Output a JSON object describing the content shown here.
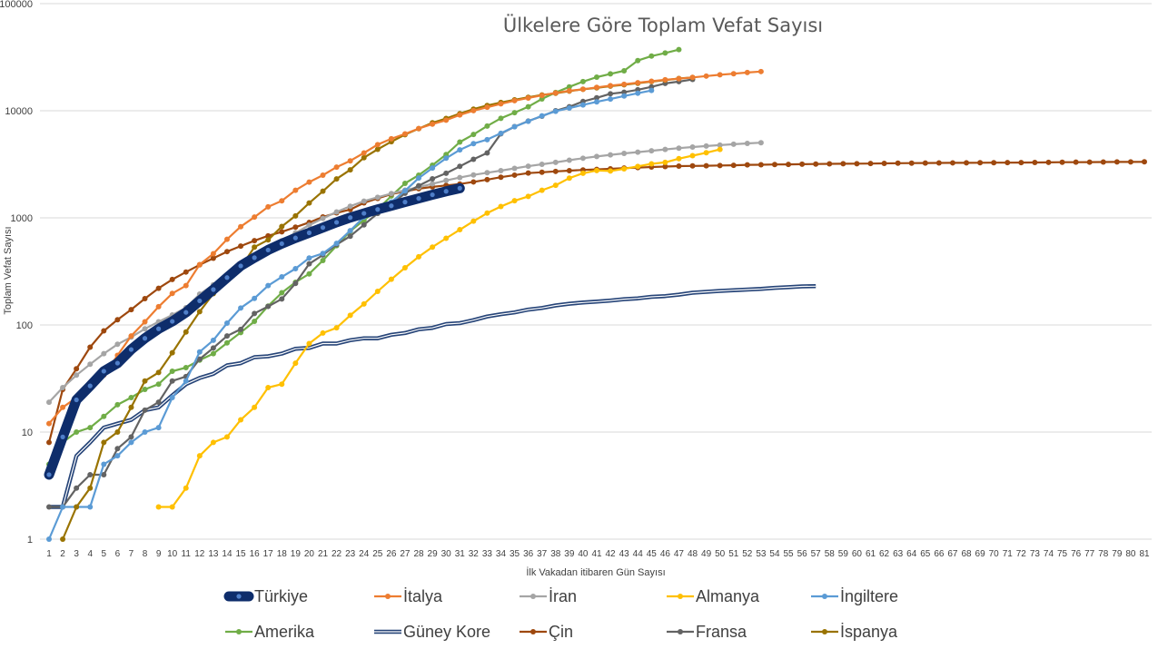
{
  "chart_data": {
    "type": "line",
    "title": "Ülkelere Göre Toplam Vefat Sayısı",
    "xlabel": "İlk Vakadan itibaren Gün Sayısı",
    "ylabel": "Toplam Vefat Sayısı",
    "yscale": "log",
    "ylim": [
      1,
      100000
    ],
    "yticks": [
      "1",
      "10",
      "100",
      "1000",
      "10000",
      "100000"
    ],
    "xlim": [
      1,
      81
    ],
    "x_categories": [
      "1",
      "2",
      "3",
      "4",
      "5",
      "6",
      "7",
      "8",
      "9",
      "10",
      "11",
      "12",
      "13",
      "14",
      "15",
      "16",
      "17",
      "18",
      "19",
      "20",
      "21",
      "22",
      "23",
      "24",
      "25",
      "26",
      "27",
      "28",
      "29",
      "30",
      "31",
      "32",
      "33",
      "34",
      "35",
      "36",
      "37",
      "38",
      "39",
      "40",
      "41",
      "42",
      "43",
      "44",
      "45",
      "46",
      "47",
      "48",
      "49",
      "50",
      "51",
      "52",
      "53",
      "54",
      "55",
      "56",
      "57",
      "58",
      "59",
      "60",
      "61",
      "62",
      "63",
      "64",
      "65",
      "66",
      "67",
      "68",
      "69",
      "70",
      "71",
      "72",
      "73",
      "74",
      "75",
      "76",
      "77",
      "78",
      "79",
      "80",
      "81"
    ],
    "grid": true,
    "legend_position": "bottom",
    "series": [
      {
        "name": "Türkiye",
        "color": "#0e2d6b",
        "style": "thick",
        "start_day": 1,
        "values": [
          4,
          9,
          20,
          27,
          37,
          44,
          59,
          75,
          92,
          108,
          131,
          168,
          214,
          277,
          356,
          425,
          501,
          574,
          649,
          725,
          812,
          908,
          1006,
          1101,
          1198,
          1296,
          1403,
          1518,
          1643,
          1769,
          1890
        ]
      },
      {
        "name": "İtalya",
        "color": "#ed7d31",
        "style": "normal",
        "start_day": 1,
        "values": [
          12,
          17,
          21,
          29,
          34,
          52,
          79,
          107,
          148,
          197,
          233,
          366,
          463,
          631,
          827,
          1016,
          1266,
          1441,
          1809,
          2158,
          2503,
          2978,
          3405,
          4032,
          4825,
          5476,
          6077,
          6820,
          7503,
          8165,
          9134,
          10023,
          10779,
          11591,
          12428,
          13155,
          13915,
          14681,
          15362,
          15887,
          16523,
          17127,
          17669,
          18279,
          18849,
          19468,
          19899,
          20465,
          21067,
          21645,
          22170,
          22745,
          23227
        ]
      },
      {
        "name": "İran",
        "color": "#a5a5a5",
        "style": "normal",
        "start_day": 1,
        "values": [
          19,
          26,
          34,
          43,
          54,
          66,
          77,
          92,
          107,
          124,
          145,
          194,
          237,
          291,
          354,
          429,
          514,
          611,
          724,
          853,
          988,
          1135,
          1284,
          1433,
          1556,
          1685,
          1812,
          1934,
          2077,
          2234,
          2378,
          2517,
          2640,
          2757,
          2898,
          3036,
          3160,
          3294,
          3452,
          3603,
          3739,
          3872,
          3993,
          4110,
          4232,
          4357,
          4474,
          4585,
          4683,
          4777,
          4869,
          4958,
          5031
        ]
      },
      {
        "name": "Almanya",
        "color": "#ffc000",
        "style": "normal",
        "start_day": 9,
        "values": [
          2,
          2,
          3,
          6,
          8,
          9,
          13,
          17,
          26,
          28,
          44,
          67,
          84,
          94,
          123,
          157,
          206,
          267,
          342,
          433,
          533,
          645,
          775,
          931,
          1107,
          1275,
          1444,
          1584,
          1810,
          2016,
          2349,
          2607,
          2767,
          2736,
          2871,
          3022,
          3194,
          3294,
          3569,
          3804,
          4052,
          4352
        ]
      },
      {
        "name": "İngiltere",
        "color": "#5b9bd5",
        "style": "normal",
        "start_day": 1,
        "values": [
          1,
          2,
          2,
          2,
          5,
          6,
          8,
          10,
          11,
          21,
          30,
          56,
          72,
          104,
          144,
          177,
          233,
          281,
          335,
          422,
          465,
          578,
          759,
          1019,
          1228,
          1408,
          1789,
          2352,
          2921,
          3605,
          4313,
          4934,
          5373,
          6159,
          7097,
          7978,
          8958,
          9875,
          10612,
          11329,
          12107,
          12868,
          13729,
          14576,
          15464
        ]
      },
      {
        "name": "Amerika",
        "color": "#70ad47",
        "style": "normal",
        "start_day": 1,
        "values": [
          5,
          8,
          10,
          11,
          14,
          18,
          21,
          25,
          28,
          37,
          40,
          47,
          54,
          68,
          85,
          108,
          150,
          200,
          250,
          300,
          400,
          550,
          750,
          950,
          1200,
          1600,
          2100,
          2500,
          3100,
          3900,
          5100,
          6000,
          7200,
          8500,
          9600,
          10900,
          12900,
          14800,
          16700,
          18700,
          20600,
          22100,
          23600,
          29400,
          32400,
          34600,
          37200
        ]
      },
      {
        "name": "Güney Kore",
        "color": "#264478",
        "style": "double",
        "start_day": 1,
        "values": [
          2,
          2,
          6,
          8,
          11,
          12,
          13,
          16,
          17,
          22,
          28,
          32,
          35,
          42,
          44,
          50,
          51,
          54,
          60,
          61,
          67,
          67,
          72,
          75,
          75,
          81,
          84,
          91,
          94,
          102,
          104,
          111,
          120,
          126,
          131,
          139,
          144,
          152,
          158,
          162,
          165,
          169,
          174,
          177,
          183,
          186,
          192,
          200,
          204,
          208,
          211,
          214,
          217,
          222,
          225,
          229,
          230
        ]
      },
      {
        "name": "Çin",
        "color": "#9e480e",
        "style": "normal",
        "start_day": 1,
        "values": [
          8,
          25,
          39,
          62,
          88,
          112,
          139,
          176,
          220,
          266,
          312,
          364,
          420,
          484,
          545,
          612,
          679,
          741,
          818,
          906,
          1019,
          1114,
          1195,
          1381,
          1519,
          1669,
          1766,
          1870,
          1947,
          2008,
          2069,
          2164,
          2276,
          2397,
          2505,
          2618,
          2664,
          2715,
          2760,
          2802,
          2837,
          2870,
          2915,
          2944,
          2980,
          3009,
          3040,
          3053,
          3067,
          3081,
          3097,
          3123,
          3134,
          3148,
          3158,
          3170,
          3178,
          3193,
          3201,
          3204,
          3213,
          3226,
          3238,
          3244,
          3250,
          3255,
          3260,
          3265,
          3270,
          3275,
          3278,
          3282,
          3290,
          3296,
          3305,
          3310,
          3315,
          3322,
          3326,
          3330,
          3333
        ]
      },
      {
        "name": "Fransa",
        "color": "#636363",
        "style": "normal",
        "start_day": 1,
        "values": [
          2,
          2,
          3,
          4,
          4,
          7,
          9,
          16,
          19,
          30,
          33,
          48,
          61,
          79,
          91,
          128,
          149,
          175,
          244,
          372,
          450,
          562,
          674,
          860,
          1100,
          1331,
          1696,
          1995,
          2314,
          2606,
          3024,
          3523,
          4032,
          6100,
          7100,
          8000,
          8900,
          10000,
          10900,
          12200,
          13200,
          14400,
          14900,
          15700,
          16700,
          18000,
          18700,
          19600
        ]
      },
      {
        "name": "İspanya",
        "color": "#997300",
        "style": "normal",
        "start_day": 2,
        "values": [
          1,
          2,
          3,
          8,
          10,
          17,
          30,
          36,
          55,
          86,
          133,
          196,
          294,
          342,
          533,
          623,
          830,
          1043,
          1375,
          1772,
          2311,
          2808,
          3647,
          4365,
          5138,
          5982,
          6803,
          7716,
          8464,
          9387,
          10348,
          11198,
          11947,
          12641,
          13341,
          14045,
          14555,
          15238,
          15843,
          16353,
          16972,
          17489,
          18056,
          18708,
          19315,
          20002,
          20453
        ]
      }
    ]
  }
}
